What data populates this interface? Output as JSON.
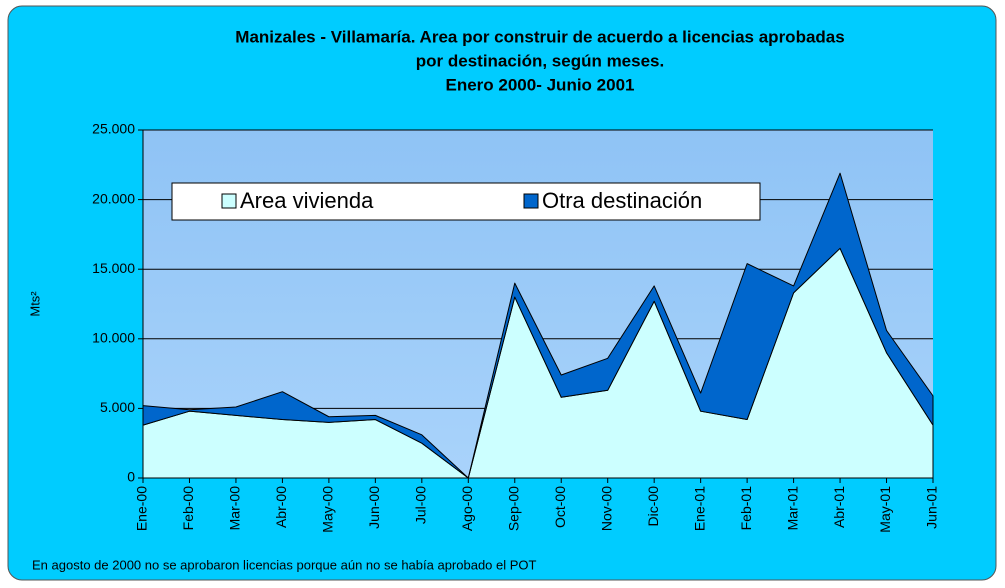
{
  "chart_data": {
    "type": "stacked_area",
    "title": [
      "Manizales - Villamaría.  Area por construir de acuerdo a licencias aprobadas",
      "por destinación, según meses.",
      "Enero 2000- Junio 2001"
    ],
    "ylabel": "Mts²",
    "categories": [
      "Ene-00",
      "Feb-00",
      "Mar-00",
      "Abr-00",
      "May-00",
      "Jun-00",
      "Jul-00",
      "Ago-00",
      "Sep-00",
      "Oct-00",
      "Nov-00",
      "Dic-00",
      "Ene-01",
      "Feb-01",
      "Mar-01",
      "Abr-01",
      "May-01",
      "Jun-01"
    ],
    "series": [
      {
        "name": "Area vivienda",
        "color": "#ccffff",
        "values": [
          3800,
          4800,
          4500,
          4200,
          4000,
          4200,
          2500,
          0,
          13000,
          5800,
          6300,
          12700,
          4800,
          4200,
          13300,
          16500,
          9000,
          3800
        ]
      },
      {
        "name": "Otra destinación",
        "color": "#0066cc",
        "values": [
          1400,
          100,
          600,
          2000,
          400,
          300,
          600,
          0,
          1000,
          1600,
          2300,
          1100,
          1300,
          11200,
          500,
          5400,
          1600,
          2100
        ]
      }
    ],
    "ylim": [
      0,
      25000
    ],
    "yticks": [
      0,
      {
        "value": 5000,
        "label": "5.000"
      },
      {
        "value": 10000,
        "label": "10.000"
      },
      {
        "value": 15000,
        "label": "15.000"
      },
      {
        "value": 20000,
        "label": "20.000"
      },
      {
        "value": 25000,
        "label": "25.000"
      }
    ],
    "grid": true,
    "note": "En agosto de 2000 no se aprobaron licencias porque aún no se había aprobado el  POT"
  }
}
